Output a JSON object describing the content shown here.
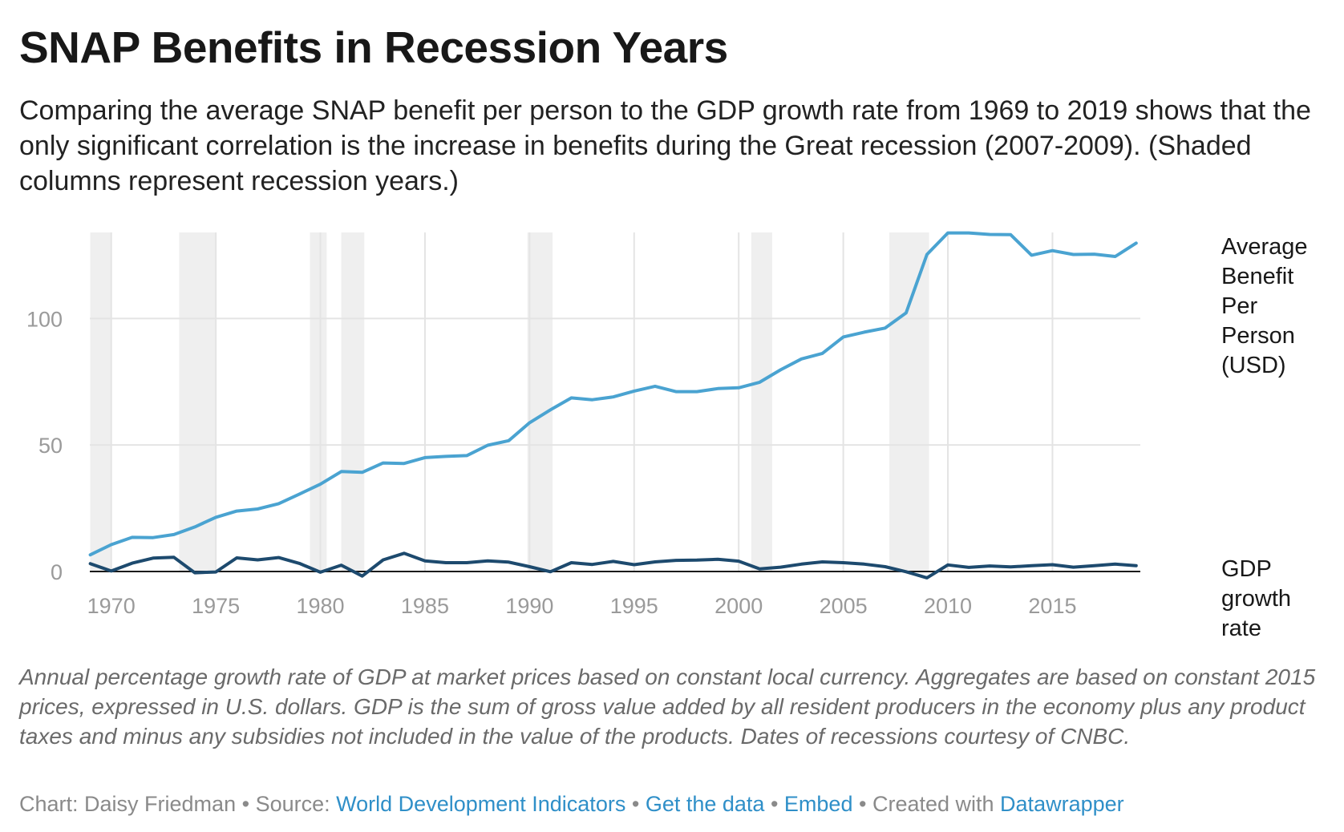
{
  "title": "SNAP Benefits in Recession Years",
  "subtitle": "Comparing the average SNAP benefit per person to the GDP growth rate from 1969 to 2019 shows that the only significant correlation is the increase in benefits during the Great recession (2007-2009). (Shaded columns represent recession years.)",
  "notes": "Annual percentage growth rate of GDP at market prices based on constant local currency. Aggregates are based on constant 2015 prices, expressed in U.S. dollars. GDP is the sum of gross value added by all resident producers in the economy plus any product taxes and minus any subsidies not included in the value of the products. Dates of recessions courtesy of CNBC.",
  "footer": {
    "chart_by": "Chart: Daisy Friedman",
    "separator": "•",
    "source_label": "Source:",
    "source_link": "World Development Indicators",
    "get_data": "Get the data",
    "embed": "Embed",
    "created_with": "Created with",
    "datawrapper": "Datawrapper"
  },
  "colors": {
    "benefit_line": "#4aa3d1",
    "gdp_line": "#1d4a6e",
    "recession_shade": "#efefef",
    "gridline": "#e4e4e4",
    "baseline": "#1a1a1a",
    "link": "#2f8fc8"
  },
  "chart_data": {
    "type": "line",
    "x_label": "",
    "y_label": "",
    "xlim": [
      1968.9,
      2019.2
    ],
    "ylim": [
      0,
      134
    ],
    "x_ticks": [
      1970,
      1975,
      1980,
      1985,
      1990,
      1995,
      2000,
      2005,
      2010,
      2015
    ],
    "y_ticks": [
      0,
      50,
      100
    ],
    "grid": true,
    "recessions": [
      {
        "start": 1969,
        "end": 1970
      },
      {
        "start": 1973.25,
        "end": 1975
      },
      {
        "start": 1979.5,
        "end": 1980.3
      },
      {
        "start": 1981,
        "end": 1982.1
      },
      {
        "start": 1989.9,
        "end": 1991.1
      },
      {
        "start": 2000.6,
        "end": 2001.6
      },
      {
        "start": 2007.2,
        "end": 2009.1
      }
    ],
    "x": [
      1969,
      1970,
      1971,
      1972,
      1973,
      1974,
      1975,
      1976,
      1977,
      1978,
      1979,
      1980,
      1981,
      1982,
      1983,
      1984,
      1985,
      1986,
      1987,
      1988,
      1989,
      1990,
      1991,
      1992,
      1993,
      1994,
      1995,
      1996,
      1997,
      1998,
      1999,
      2000,
      2001,
      2002,
      2003,
      2004,
      2005,
      2006,
      2007,
      2008,
      2009,
      2010,
      2011,
      2012,
      2013,
      2014,
      2015,
      2016,
      2017,
      2018,
      2019
    ],
    "series": [
      {
        "name": "Average Benefit Per Person (USD)",
        "label_lines": [
          "Average",
          "Benefit",
          "Per",
          "Person",
          "(USD)"
        ],
        "values": [
          6.6,
          10.6,
          13.5,
          13.4,
          14.6,
          17.6,
          21.4,
          23.9,
          24.7,
          26.8,
          30.6,
          34.5,
          39.5,
          39.2,
          42.9,
          42.7,
          45.0,
          45.5,
          45.8,
          49.9,
          51.7,
          58.8,
          63.9,
          68.6,
          67.9,
          69.0,
          71.3,
          73.2,
          71.1,
          71.1,
          72.3,
          72.6,
          74.8,
          79.7,
          84.0,
          86.2,
          92.7,
          94.6,
          96.2,
          102.2,
          125.3,
          133.8,
          133.8,
          133.2,
          133.1,
          125.0,
          126.8,
          125.3,
          125.4,
          124.5,
          129.8
        ]
      },
      {
        "name": "GDP growth rate",
        "label_lines": [
          "GDP",
          "growth",
          "rate"
        ],
        "values": [
          3.1,
          0.2,
          3.3,
          5.3,
          5.6,
          -0.5,
          -0.2,
          5.4,
          4.6,
          5.5,
          3.2,
          -0.3,
          2.5,
          -1.8,
          4.6,
          7.2,
          4.2,
          3.5,
          3.5,
          4.2,
          3.7,
          1.9,
          -0.1,
          3.5,
          2.8,
          4.0,
          2.7,
          3.8,
          4.4,
          4.5,
          4.8,
          4.1,
          1.0,
          1.7,
          2.9,
          3.8,
          3.5,
          2.9,
          1.9,
          -0.1,
          -2.5,
          2.6,
          1.6,
          2.2,
          1.8,
          2.3,
          2.7,
          1.7,
          2.3,
          2.9,
          2.3
        ]
      }
    ]
  }
}
